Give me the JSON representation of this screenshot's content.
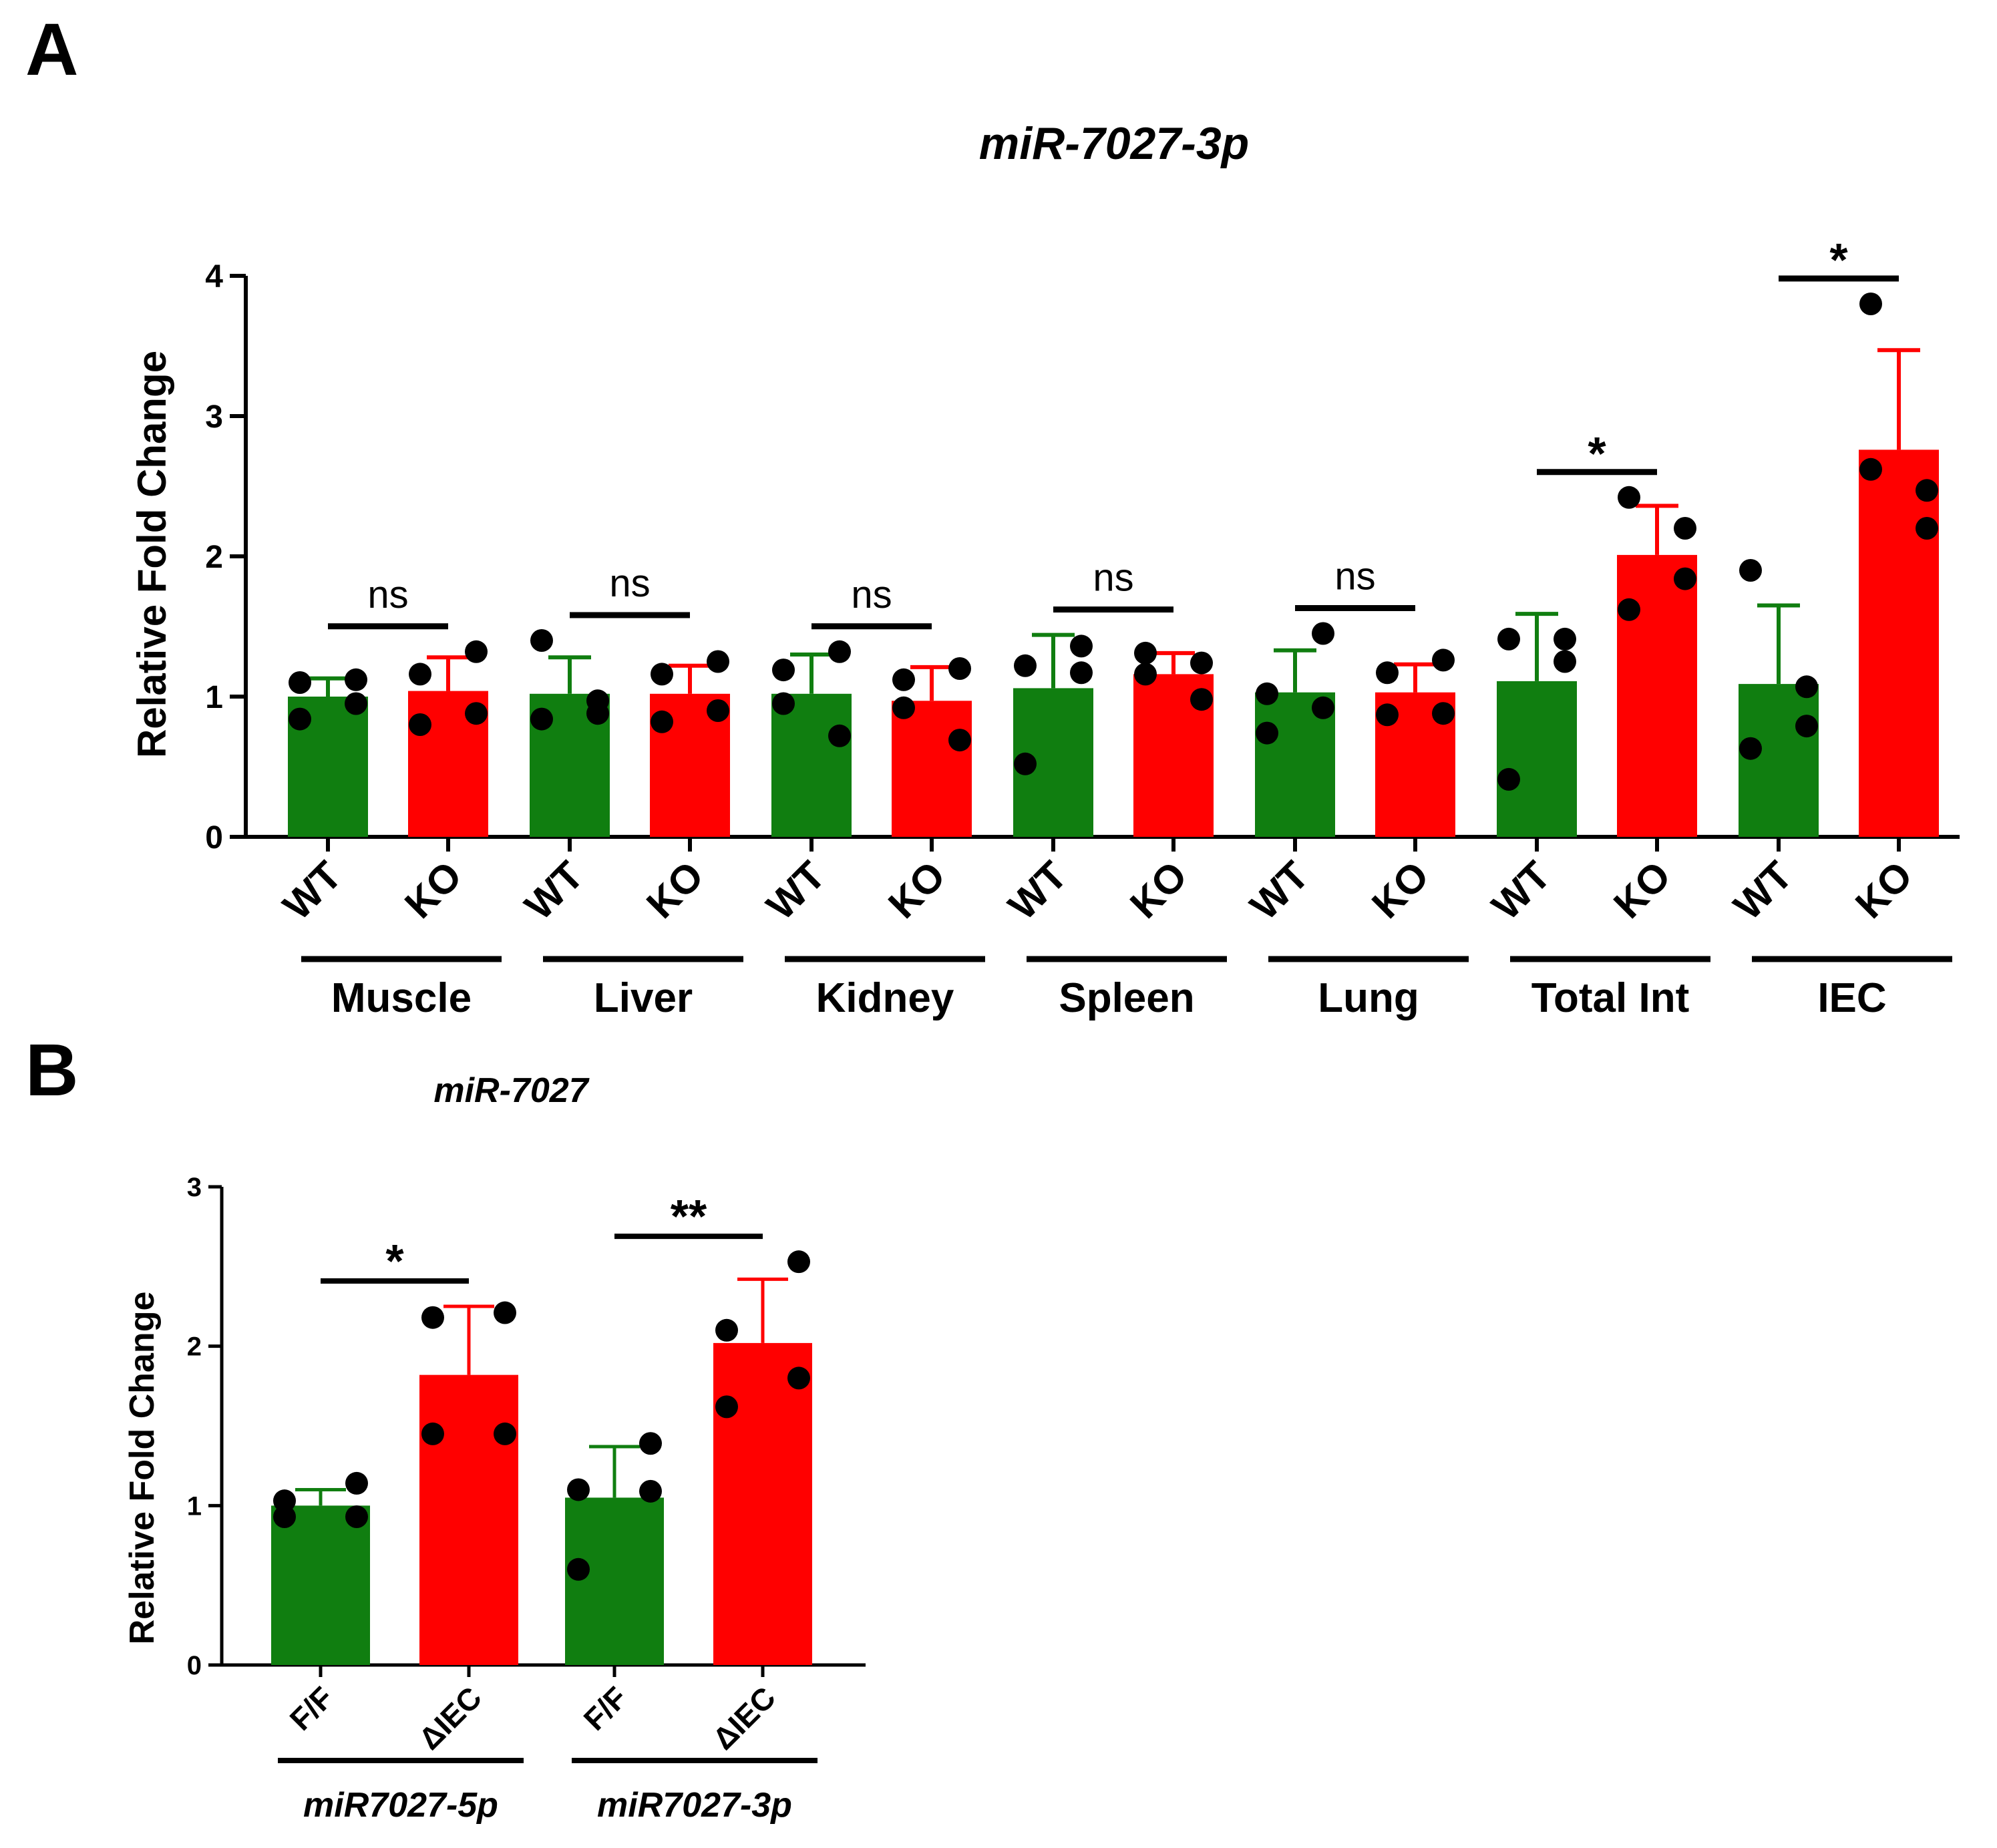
{
  "panel_labels": {
    "a": "A",
    "b": "B"
  },
  "colors": {
    "wt": "#107e10",
    "ko": "#ff0000",
    "axis": "#000000",
    "point": "#000000"
  },
  "chart_data": [
    {
      "type": "bar",
      "title": "miR-7027-3p",
      "ylabel": "Relative Fold Change",
      "xlabel": "",
      "ylim": [
        0,
        4
      ],
      "yticks": [
        "0",
        "1",
        "2",
        "3",
        "4"
      ],
      "series_labels": [
        "WT",
        "KO"
      ],
      "groups": [
        {
          "name": "Muscle",
          "significance": "ns",
          "bars": [
            {
              "label": "WT",
              "mean": 1.0,
              "err": 0.13,
              "points": [
                1.1,
                0.84,
                0.95,
                1.12
              ]
            },
            {
              "label": "KO",
              "mean": 1.04,
              "err": 0.24,
              "points": [
                1.16,
                0.8,
                0.88,
                1.32
              ]
            }
          ]
        },
        {
          "name": "Liver",
          "significance": "ns",
          "bars": [
            {
              "label": "WT",
              "mean": 1.02,
              "err": 0.26,
              "points": [
                0.84,
                1.4,
                0.97,
                0.88
              ]
            },
            {
              "label": "KO",
              "mean": 1.02,
              "err": 0.2,
              "points": [
                1.16,
                0.82,
                0.9,
                1.25
              ]
            }
          ]
        },
        {
          "name": "Kidney",
          "significance": "ns",
          "bars": [
            {
              "label": "WT",
              "mean": 1.02,
              "err": 0.28,
              "points": [
                1.19,
                0.95,
                0.72,
                1.32
              ]
            },
            {
              "label": "KO",
              "mean": 0.97,
              "err": 0.24,
              "points": [
                1.12,
                0.92,
                0.69,
                1.2
              ]
            }
          ]
        },
        {
          "name": "Spleen",
          "significance": "ns",
          "bars": [
            {
              "label": "WT",
              "mean": 1.06,
              "err": 0.38,
              "points": [
                1.22,
                0.52,
                1.36,
                1.17
              ]
            },
            {
              "label": "KO",
              "mean": 1.16,
              "err": 0.15,
              "points": [
                1.31,
                1.16,
                0.98,
                1.24
              ]
            }
          ]
        },
        {
          "name": "Lung",
          "significance": "ns",
          "bars": [
            {
              "label": "WT",
              "mean": 1.03,
              "err": 0.3,
              "points": [
                1.02,
                0.74,
                1.45,
                0.92
              ]
            },
            {
              "label": "KO",
              "mean": 1.03,
              "err": 0.2,
              "points": [
                1.17,
                0.87,
                0.88,
                1.26
              ]
            }
          ]
        },
        {
          "name": "Total Int",
          "significance": "*",
          "bars": [
            {
              "label": "WT",
              "mean": 1.11,
              "err": 0.48,
              "points": [
                1.41,
                0.41,
                1.41,
                1.25
              ]
            },
            {
              "label": "KO",
              "mean": 2.01,
              "err": 0.35,
              "points": [
                2.42,
                1.62,
                1.84,
                2.2
              ]
            }
          ]
        },
        {
          "name": "IEC",
          "significance": "*",
          "bars": [
            {
              "label": "WT",
              "mean": 1.09,
              "err": 0.56,
              "points": [
                0.63,
                1.9,
                1.07,
                0.79
              ]
            },
            {
              "label": "KO",
              "mean": 2.76,
              "err": 0.71,
              "points": [
                2.62,
                3.8,
                2.2,
                2.47
              ]
            }
          ]
        }
      ]
    },
    {
      "type": "bar",
      "title": "miR-7027",
      "ylabel": "Relative Fold Change",
      "xlabel": "",
      "ylim": [
        0,
        3
      ],
      "yticks": [
        "0",
        "1",
        "2",
        "3"
      ],
      "series_labels": [
        "F/F",
        "ΔIEC"
      ],
      "groups": [
        {
          "name": "miR7027-5p",
          "significance": "*",
          "bars": [
            {
              "label": "F/F",
              "mean": 1.0,
              "err": 0.1,
              "points": [
                0.93,
                1.03,
                0.93,
                1.14
              ]
            },
            {
              "label": "ΔIEC",
              "mean": 1.82,
              "err": 0.43,
              "points": [
                2.18,
                1.45,
                1.45,
                2.21
              ]
            }
          ]
        },
        {
          "name": "miR7027-3p",
          "significance": "**",
          "bars": [
            {
              "label": "F/F",
              "mean": 1.05,
              "err": 0.32,
              "points": [
                1.1,
                0.6,
                1.39,
                1.09
              ]
            },
            {
              "label": "ΔIEC",
              "mean": 2.02,
              "err": 0.4,
              "points": [
                2.1,
                1.62,
                2.53,
                1.8
              ]
            }
          ]
        }
      ]
    }
  ]
}
